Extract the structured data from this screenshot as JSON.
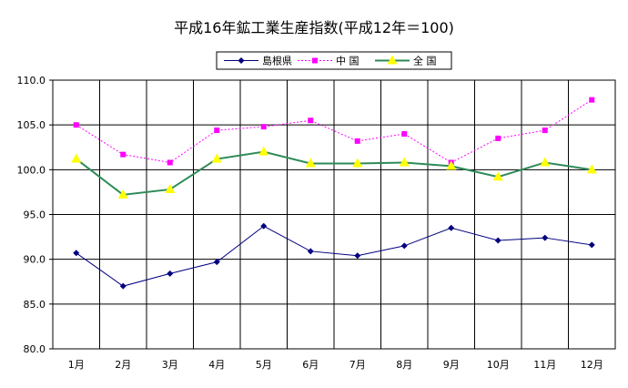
{
  "chart_data": {
    "type": "line",
    "title": "平成16年鉱工業生産指数(平成12年＝100)",
    "categories": [
      "1月",
      "2月",
      "3月",
      "4月",
      "5月",
      "6月",
      "7月",
      "8月",
      "9月",
      "10月",
      "11月",
      "12月"
    ],
    "ylim": [
      80.0,
      110.0
    ],
    "yticks": [
      "80.0",
      "85.0",
      "90.0",
      "95.0",
      "100.0",
      "105.0",
      "110.0"
    ],
    "grid": true,
    "legend_position": "top",
    "series": [
      {
        "name": "島根県",
        "color": "#000080",
        "marker": "diamond",
        "dash": "solid",
        "values": [
          90.7,
          87.0,
          88.4,
          89.7,
          93.7,
          90.9,
          90.4,
          91.5,
          93.5,
          92.1,
          92.4,
          91.6
        ]
      },
      {
        "name": "中 国",
        "color": "#ff00ff",
        "marker": "square",
        "dash": "dotted",
        "values": [
          105.0,
          101.7,
          100.8,
          104.4,
          104.8,
          105.5,
          103.2,
          104.0,
          100.8,
          103.5,
          104.4,
          107.8
        ]
      },
      {
        "name": "全 国",
        "color": "#2e8b57",
        "marker": "triangle",
        "markerColor": "#ffff00",
        "dash": "solid",
        "values": [
          101.2,
          97.2,
          97.8,
          101.2,
          102.0,
          100.7,
          100.7,
          100.8,
          100.4,
          99.2,
          100.8,
          100.0
        ]
      }
    ]
  }
}
